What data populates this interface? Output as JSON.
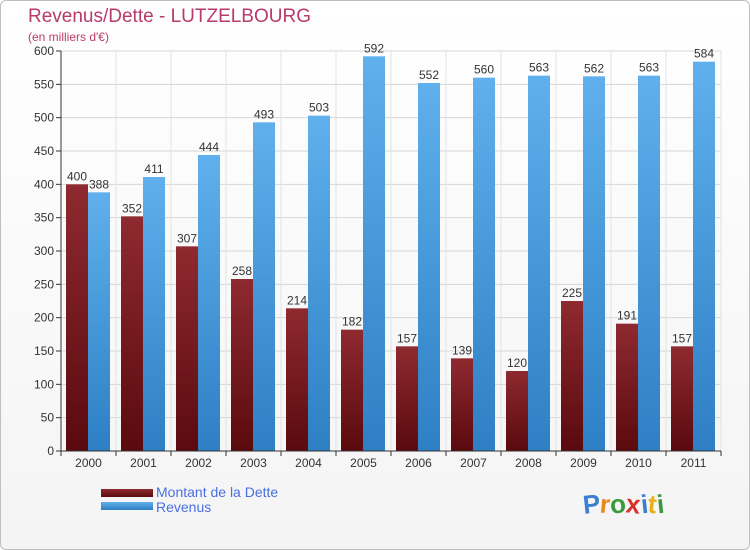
{
  "header": {
    "title": "Revenus/Dette - LUTZELBOURG",
    "subtitle": "(en milliers d'€)"
  },
  "legend": {
    "debt_label": "Montant de la Dette",
    "revenue_label": "Revenus"
  },
  "logo": {
    "text": "Proxiti",
    "letters": [
      {
        "ch": "P",
        "color": "#3a7fd0"
      },
      {
        "ch": "r",
        "color": "#e88a1a"
      },
      {
        "ch": "o",
        "color": "#3a9a3a"
      },
      {
        "ch": "x",
        "color": "#d8322a"
      },
      {
        "ch": "i",
        "color": "#3a7fd0"
      },
      {
        "ch": "t",
        "color": "#e8b01a"
      },
      {
        "ch": "i",
        "color": "#3a9a3a"
      }
    ]
  },
  "colors": {
    "debt": "#7a1f24",
    "revenue": "#4a9fe0",
    "title": "#b83a6a",
    "legend_text": "#4a6fe0"
  },
  "chart_data": {
    "type": "bar",
    "title": "Revenus/Dette - LUTZELBOURG",
    "ylabel": "(en milliers d'€)",
    "categories": [
      "2000",
      "2001",
      "2002",
      "2003",
      "2004",
      "2005",
      "2006",
      "2007",
      "2008",
      "2009",
      "2010",
      "2011"
    ],
    "series": [
      {
        "name": "Montant de la Dette",
        "values": [
          400,
          352,
          307,
          258,
          214,
          182,
          157,
          139,
          120,
          225,
          191,
          157
        ]
      },
      {
        "name": "Revenus",
        "values": [
          388,
          411,
          444,
          493,
          503,
          592,
          552,
          560,
          563,
          562,
          563,
          584
        ]
      }
    ],
    "ylim": [
      0,
      600
    ],
    "yticks": [
      0,
      50,
      100,
      150,
      200,
      250,
      300,
      350,
      400,
      450,
      500,
      550,
      600
    ],
    "grid": true,
    "legend_position": "bottom-left"
  }
}
